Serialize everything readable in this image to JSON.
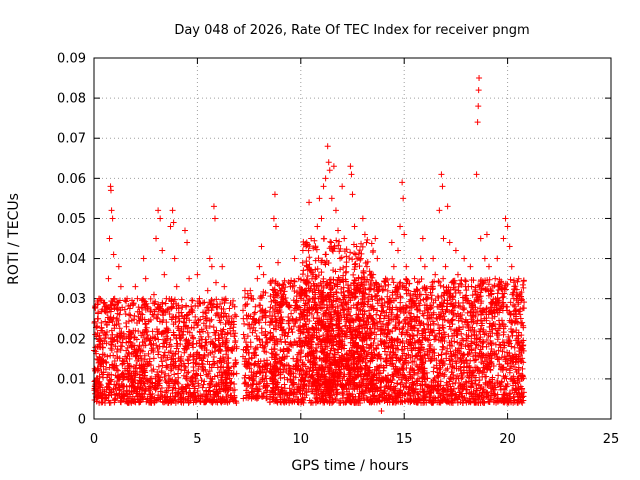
{
  "chart_data": {
    "type": "scatter",
    "title": "Day 048 of 2026, Rate Of TEC Index for receiver pngm",
    "xlabel": "GPS time / hours",
    "ylabel": "ROTI / TECUs",
    "xlim": [
      0,
      25
    ],
    "ylim": [
      0,
      0.09
    ],
    "xticks": [
      0,
      5,
      10,
      15,
      20,
      25
    ],
    "yticks": [
      0,
      0.01,
      0.02,
      0.03,
      0.04,
      0.05,
      0.06,
      0.07,
      0.08,
      0.09
    ],
    "xtick_labels": [
      "0",
      "5",
      "10",
      "15",
      "20",
      "25"
    ],
    "ytick_labels": [
      "0",
      "0.01",
      "0.02",
      "0.03",
      "0.04",
      "0.05",
      "0.06",
      "0.07",
      "0.08",
      "0.09"
    ],
    "grid": true,
    "marker": "+",
    "color": "#ff0000",
    "series": [
      {
        "points": [
          [
            0.05,
            0.012
          ],
          [
            0.1,
            0.008
          ],
          [
            0.15,
            0.018
          ],
          [
            0.2,
            0.025
          ],
          [
            0.25,
            0.03
          ],
          [
            0.3,
            0.015
          ],
          [
            0.35,
            0.006
          ],
          [
            0.4,
            0.022
          ],
          [
            0.5,
            0.027
          ],
          [
            0.6,
            0.014
          ],
          [
            0.7,
            0.035
          ],
          [
            0.75,
            0.045
          ],
          [
            0.8,
            0.058
          ],
          [
            0.82,
            0.057
          ],
          [
            0.85,
            0.052
          ],
          [
            0.9,
            0.05
          ],
          [
            0.95,
            0.041
          ],
          [
            1.0,
            0.03
          ],
          [
            1.1,
            0.025
          ],
          [
            1.2,
            0.038
          ],
          [
            1.3,
            0.033
          ],
          [
            1.4,
            0.02
          ],
          [
            1.5,
            0.012
          ],
          [
            1.6,
            0.03
          ],
          [
            1.7,
            0.026
          ],
          [
            1.8,
            0.01
          ],
          [
            1.9,
            0.022
          ],
          [
            2.0,
            0.033
          ],
          [
            2.1,
            0.03
          ],
          [
            2.2,
            0.018
          ],
          [
            2.3,
            0.009
          ],
          [
            2.4,
            0.04
          ],
          [
            2.5,
            0.035
          ],
          [
            2.6,
            0.028
          ],
          [
            2.7,
            0.015
          ],
          [
            2.8,
            0.012
          ],
          [
            2.9,
            0.031
          ],
          [
            3.0,
            0.045
          ],
          [
            3.1,
            0.052
          ],
          [
            3.2,
            0.05
          ],
          [
            3.3,
            0.042
          ],
          [
            3.4,
            0.036
          ],
          [
            3.5,
            0.03
          ],
          [
            3.6,
            0.022
          ],
          [
            3.7,
            0.048
          ],
          [
            3.8,
            0.052
          ],
          [
            3.85,
            0.049
          ],
          [
            3.9,
            0.04
          ],
          [
            4.0,
            0.033
          ],
          [
            4.1,
            0.025
          ],
          [
            4.2,
            0.015
          ],
          [
            4.3,
            0.008
          ],
          [
            4.4,
            0.047
          ],
          [
            4.5,
            0.044
          ],
          [
            4.6,
            0.035
          ],
          [
            4.7,
            0.028
          ],
          [
            4.8,
            0.02
          ],
          [
            4.9,
            0.01
          ],
          [
            5.0,
            0.036
          ],
          [
            5.1,
            0.03
          ],
          [
            5.2,
            0.018
          ],
          [
            5.3,
            0.012
          ],
          [
            5.4,
            0.025
          ],
          [
            5.5,
            0.032
          ],
          [
            5.6,
            0.04
          ],
          [
            5.7,
            0.038
          ],
          [
            5.8,
            0.053
          ],
          [
            5.85,
            0.05
          ],
          [
            5.9,
            0.034
          ],
          [
            6.0,
            0.026
          ],
          [
            6.1,
            0.017
          ],
          [
            6.2,
            0.038
          ],
          [
            6.3,
            0.033
          ],
          [
            6.4,
            0.02
          ],
          [
            6.5,
            0.014
          ],
          [
            6.6,
            0.009
          ],
          [
            6.7,
            0.005
          ],
          [
            6.8,
            0.028
          ],
          [
            6.9,
            0.018
          ],
          [
            7.3,
            0.032
          ],
          [
            7.4,
            0.025
          ],
          [
            7.5,
            0.015
          ],
          [
            7.6,
            0.03
          ],
          [
            7.7,
            0.01
          ],
          [
            7.8,
            0.022
          ],
          [
            7.9,
            0.035
          ],
          [
            8.0,
            0.038
          ],
          [
            8.1,
            0.043
          ],
          [
            8.2,
            0.036
          ],
          [
            8.3,
            0.027
          ],
          [
            8.4,
            0.019
          ],
          [
            8.5,
            0.012
          ],
          [
            8.6,
            0.025
          ],
          [
            8.7,
            0.05
          ],
          [
            8.75,
            0.056
          ],
          [
            8.8,
            0.048
          ],
          [
            8.9,
            0.039
          ],
          [
            9.0,
            0.032
          ],
          [
            9.1,
            0.021
          ],
          [
            9.2,
            0.015
          ],
          [
            9.3,
            0.012
          ],
          [
            9.4,
            0.028
          ],
          [
            9.5,
            0.033
          ],
          [
            9.6,
            0.025
          ],
          [
            9.7,
            0.04
          ],
          [
            9.8,
            0.015
          ],
          [
            9.9,
            0.035
          ],
          [
            10.0,
            0.03
          ],
          [
            10.1,
            0.042
          ],
          [
            10.2,
            0.025
          ],
          [
            10.3,
            0.038
          ],
          [
            10.4,
            0.054
          ],
          [
            10.5,
            0.045
          ],
          [
            10.6,
            0.036
          ],
          [
            10.7,
            0.03
          ],
          [
            10.8,
            0.048
          ],
          [
            10.9,
            0.055
          ],
          [
            11.0,
            0.05
          ],
          [
            11.1,
            0.058
          ],
          [
            11.2,
            0.06
          ],
          [
            11.3,
            0.068
          ],
          [
            11.35,
            0.064
          ],
          [
            11.4,
            0.062
          ],
          [
            11.5,
            0.055
          ],
          [
            11.6,
            0.063
          ],
          [
            11.7,
            0.052
          ],
          [
            11.8,
            0.047
          ],
          [
            11.9,
            0.04
          ],
          [
            12.0,
            0.058
          ],
          [
            12.1,
            0.045
          ],
          [
            12.2,
            0.038
          ],
          [
            12.3,
            0.032
          ],
          [
            12.4,
            0.063
          ],
          [
            12.45,
            0.061
          ],
          [
            12.5,
            0.056
          ],
          [
            12.6,
            0.048
          ],
          [
            12.7,
            0.043
          ],
          [
            12.8,
            0.035
          ],
          [
            12.9,
            0.04
          ],
          [
            13.0,
            0.05
          ],
          [
            13.1,
            0.046
          ],
          [
            13.2,
            0.038
          ],
          [
            13.3,
            0.031
          ],
          [
            13.4,
            0.025
          ],
          [
            13.5,
            0.036
          ],
          [
            13.6,
            0.045
          ],
          [
            13.7,
            0.04
          ],
          [
            13.8,
            0.033
          ],
          [
            13.9,
            0.002
          ],
          [
            14.0,
            0.027
          ],
          [
            14.1,
            0.035
          ],
          [
            14.2,
            0.028
          ],
          [
            14.3,
            0.03
          ],
          [
            14.4,
            0.044
          ],
          [
            14.5,
            0.038
          ],
          [
            14.6,
            0.03
          ],
          [
            14.7,
            0.042
          ],
          [
            14.8,
            0.048
          ],
          [
            14.9,
            0.059
          ],
          [
            14.95,
            0.055
          ],
          [
            15.0,
            0.046
          ],
          [
            15.1,
            0.038
          ],
          [
            15.2,
            0.032
          ],
          [
            15.3,
            0.025
          ],
          [
            15.4,
            0.02
          ],
          [
            15.5,
            0.035
          ],
          [
            15.6,
            0.03
          ],
          [
            15.7,
            0.022
          ],
          [
            15.8,
            0.04
          ],
          [
            15.9,
            0.045
          ],
          [
            16.0,
            0.038
          ],
          [
            16.1,
            0.03
          ],
          [
            16.2,
            0.025
          ],
          [
            16.3,
            0.033
          ],
          [
            16.4,
            0.04
          ],
          [
            16.5,
            0.036
          ],
          [
            16.6,
            0.028
          ],
          [
            16.7,
            0.052
          ],
          [
            16.8,
            0.061
          ],
          [
            16.85,
            0.058
          ],
          [
            16.9,
            0.045
          ],
          [
            17.0,
            0.038
          ],
          [
            17.1,
            0.053
          ],
          [
            17.2,
            0.044
          ],
          [
            17.3,
            0.034
          ],
          [
            17.4,
            0.026
          ],
          [
            17.5,
            0.042
          ],
          [
            17.6,
            0.036
          ],
          [
            17.7,
            0.028
          ],
          [
            17.8,
            0.02
          ],
          [
            17.9,
            0.04
          ],
          [
            18.0,
            0.03
          ],
          [
            18.1,
            0.033
          ],
          [
            18.2,
            0.038
          ],
          [
            18.3,
            0.028
          ],
          [
            18.4,
            0.021
          ],
          [
            18.5,
            0.061
          ],
          [
            18.55,
            0.074
          ],
          [
            18.58,
            0.078
          ],
          [
            18.6,
            0.082
          ],
          [
            18.62,
            0.085
          ],
          [
            18.7,
            0.045
          ],
          [
            18.8,
            0.034
          ],
          [
            18.9,
            0.04
          ],
          [
            19.0,
            0.046
          ],
          [
            19.1,
            0.038
          ],
          [
            19.2,
            0.031
          ],
          [
            19.3,
            0.027
          ],
          [
            19.4,
            0.035
          ],
          [
            19.5,
            0.04
          ],
          [
            19.6,
            0.033
          ],
          [
            19.7,
            0.028
          ],
          [
            19.8,
            0.045
          ],
          [
            19.9,
            0.05
          ],
          [
            20.0,
            0.048
          ],
          [
            20.1,
            0.043
          ],
          [
            20.2,
            0.038
          ],
          [
            20.3,
            0.03
          ],
          [
            20.4,
            0.025
          ],
          [
            20.5,
            0.02
          ],
          [
            20.6,
            0.015
          ],
          [
            20.7,
            0.01
          ]
        ]
      }
    ],
    "dense_segments": [
      {
        "x": [
          0.0,
          6.9
        ],
        "y_min": 0.004,
        "y_max": 0.03,
        "count": 1400
      },
      {
        "x": [
          7.2,
          8.4
        ],
        "y_min": 0.005,
        "y_max": 0.032,
        "count": 220
      },
      {
        "x": [
          8.5,
          20.8
        ],
        "y_min": 0.004,
        "y_max": 0.035,
        "count": 3200
      },
      {
        "x": [
          10.0,
          13.5
        ],
        "y_min": 0.008,
        "y_max": 0.045,
        "count": 500
      }
    ]
  }
}
